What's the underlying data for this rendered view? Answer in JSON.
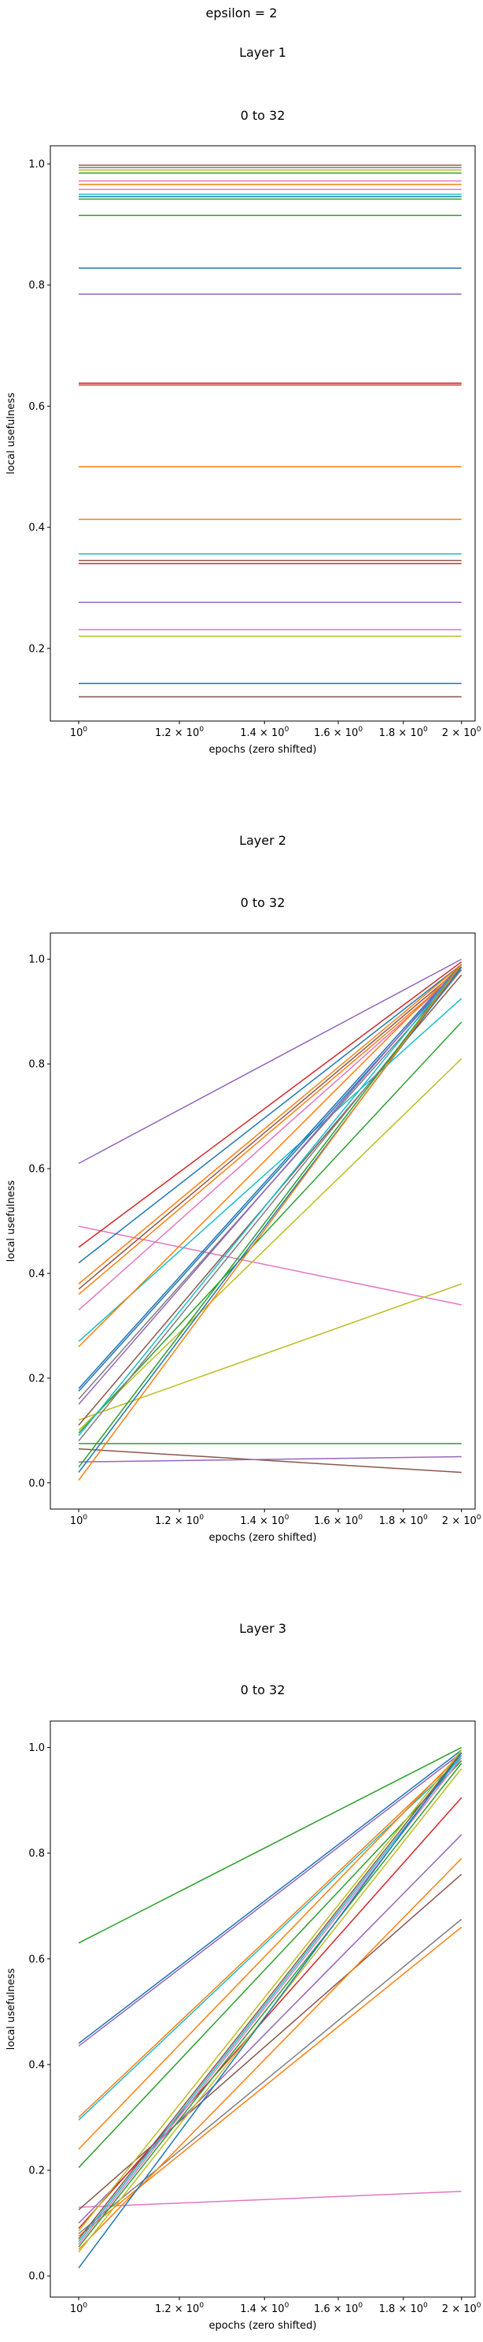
{
  "figure": {
    "suptitle": "epsilon = 2"
  },
  "chart_data": [
    {
      "type": "line",
      "section_title": "Layer 1",
      "title": "0 to 32",
      "xlabel": "epochs (zero shifted)",
      "ylabel": "local usefulness",
      "x_scale": "log",
      "x": [
        1,
        2
      ],
      "xlim": [
        0.95,
        2.05
      ],
      "ylim": [
        0.08,
        1.03
      ],
      "xticks": [
        1.0,
        1.2,
        1.4,
        1.6,
        1.8,
        2.0
      ],
      "xtick_labels": [
        {
          "base": "10",
          "exp": "0"
        },
        {
          "base": "1.2 × 10",
          "exp": "0"
        },
        {
          "base": "1.4 × 10",
          "exp": "0"
        },
        {
          "base": "1.6 × 10",
          "exp": "0"
        },
        {
          "base": "1.8 × 10",
          "exp": "0"
        },
        {
          "base": "2 × 10",
          "exp": "0"
        }
      ],
      "yticks": [
        "0.2",
        "0.4",
        "0.6",
        "0.8",
        "1.0"
      ],
      "grid": false,
      "series": [
        {
          "color": "#8c564b",
          "values": [
            0.998,
            0.998
          ]
        },
        {
          "color": "#7f7f7f",
          "values": [
            0.994,
            0.994
          ]
        },
        {
          "color": "#bcbd22",
          "values": [
            0.99,
            0.99
          ]
        },
        {
          "color": "#2ca02c",
          "values": [
            0.985,
            0.985
          ]
        },
        {
          "color": "#e377c2",
          "values": [
            0.972,
            0.972
          ]
        },
        {
          "color": "#ff7f0e",
          "values": [
            0.966,
            0.966
          ]
        },
        {
          "color": "#e377c2",
          "values": [
            0.958,
            0.958
          ]
        },
        {
          "color": "#17becf",
          "values": [
            0.95,
            0.95
          ]
        },
        {
          "color": "#1f77b4",
          "values": [
            0.946,
            0.946
          ]
        },
        {
          "color": "#2ca02c",
          "values": [
            0.942,
            0.942
          ]
        },
        {
          "color": "#2ca02c",
          "values": [
            0.915,
            0.915
          ]
        },
        {
          "color": "#1f77b4",
          "values": [
            0.828,
            0.828
          ]
        },
        {
          "color": "#9467bd",
          "values": [
            0.785,
            0.785
          ]
        },
        {
          "color": "#d62728",
          "values": [
            0.638,
            0.638
          ]
        },
        {
          "color": "#d62728",
          "values": [
            0.635,
            0.635
          ]
        },
        {
          "color": "#ff7f0e",
          "values": [
            0.5,
            0.5
          ]
        },
        {
          "color": "#ff7f0e",
          "values": [
            0.413,
            0.413
          ]
        },
        {
          "color": "#17becf",
          "values": [
            0.356,
            0.356
          ]
        },
        {
          "color": "#8c564b",
          "values": [
            0.345,
            0.345
          ]
        },
        {
          "color": "#d62728",
          "values": [
            0.34,
            0.34
          ]
        },
        {
          "color": "#9467bd",
          "values": [
            0.276,
            0.276
          ]
        },
        {
          "color": "#e377c2",
          "values": [
            0.231,
            0.231
          ]
        },
        {
          "color": "#bcbd22",
          "values": [
            0.22,
            0.22
          ]
        },
        {
          "color": "#1f77b4",
          "values": [
            0.142,
            0.142
          ]
        },
        {
          "color": "#8c564b",
          "values": [
            0.12,
            0.12
          ]
        }
      ]
    },
    {
      "type": "line",
      "section_title": "Layer 2",
      "title": "0 to 32",
      "xlabel": "epochs (zero shifted)",
      "ylabel": "local usefulness",
      "x_scale": "log",
      "x": [
        1,
        2
      ],
      "xlim": [
        0.95,
        2.05
      ],
      "ylim": [
        -0.05,
        1.05
      ],
      "xticks": [
        1.0,
        1.2,
        1.4,
        1.6,
        1.8,
        2.0
      ],
      "xtick_labels": [
        {
          "base": "10",
          "exp": "0"
        },
        {
          "base": "1.2 × 10",
          "exp": "0"
        },
        {
          "base": "1.4 × 10",
          "exp": "0"
        },
        {
          "base": "1.6 × 10",
          "exp": "0"
        },
        {
          "base": "1.8 × 10",
          "exp": "0"
        },
        {
          "base": "2 × 10",
          "exp": "0"
        }
      ],
      "yticks": [
        "0.0",
        "0.2",
        "0.4",
        "0.6",
        "0.8",
        "1.0"
      ],
      "grid": false,
      "series": [
        {
          "color": "#9467bd",
          "values": [
            0.61,
            1.0
          ]
        },
        {
          "color": "#e377c2",
          "values": [
            0.49,
            0.34
          ]
        },
        {
          "color": "#d62728",
          "values": [
            0.45,
            0.995
          ]
        },
        {
          "color": "#1f77b4",
          "values": [
            0.42,
            0.99
          ]
        },
        {
          "color": "#ff7f0e",
          "values": [
            0.38,
            0.99
          ]
        },
        {
          "color": "#8c564b",
          "values": [
            0.37,
            0.985
          ]
        },
        {
          "color": "#ff7f0e",
          "values": [
            0.36,
            0.98
          ]
        },
        {
          "color": "#e377c2",
          "values": [
            0.33,
            0.98
          ]
        },
        {
          "color": "#17becf",
          "values": [
            0.27,
            0.925
          ]
        },
        {
          "color": "#ff7f0e",
          "values": [
            0.26,
            0.99
          ]
        },
        {
          "color": "#1f77b4",
          "values": [
            0.18,
            0.99
          ]
        },
        {
          "color": "#1f77b4",
          "values": [
            0.175,
            0.985
          ]
        },
        {
          "color": "#7f7f7f",
          "values": [
            0.16,
            0.98
          ]
        },
        {
          "color": "#9467bd",
          "values": [
            0.15,
            0.99
          ]
        },
        {
          "color": "#bcbd22",
          "values": [
            0.12,
            0.38
          ]
        },
        {
          "color": "#8c564b",
          "values": [
            0.11,
            0.97
          ]
        },
        {
          "color": "#bcbd22",
          "values": [
            0.1,
            0.81
          ]
        },
        {
          "color": "#2ca02c",
          "values": [
            0.095,
            0.88
          ]
        },
        {
          "color": "#17becf",
          "values": [
            0.09,
            0.99
          ]
        },
        {
          "color": "#7f7f7f",
          "values": [
            0.08,
            0.98
          ]
        },
        {
          "color": "#2ca02c",
          "values": [
            0.075,
            0.075
          ]
        },
        {
          "color": "#8c564b",
          "values": [
            0.065,
            0.02
          ]
        },
        {
          "color": "#9467bd",
          "values": [
            0.04,
            0.05
          ]
        },
        {
          "color": "#2ca02c",
          "values": [
            0.03,
            0.99
          ]
        },
        {
          "color": "#1f77b4",
          "values": [
            0.02,
            0.985
          ]
        },
        {
          "color": "#ff7f0e",
          "values": [
            0.005,
            0.99
          ]
        }
      ]
    },
    {
      "type": "line",
      "section_title": "Layer 3",
      "title": "0 to 32",
      "xlabel": "epochs (zero shifted)",
      "ylabel": "local usefulness",
      "x_scale": "log",
      "x": [
        1,
        2
      ],
      "xlim": [
        0.95,
        2.05
      ],
      "ylim": [
        -0.04,
        1.05
      ],
      "xticks": [
        1.0,
        1.2,
        1.4,
        1.6,
        1.8,
        2.0
      ],
      "xtick_labels": [
        {
          "base": "10",
          "exp": "0"
        },
        {
          "base": "1.2 × 10",
          "exp": "0"
        },
        {
          "base": "1.4 × 10",
          "exp": "0"
        },
        {
          "base": "1.6 × 10",
          "exp": "0"
        },
        {
          "base": "1.8 × 10",
          "exp": "0"
        },
        {
          "base": "2 × 10",
          "exp": "0"
        }
      ],
      "yticks": [
        "0.0",
        "0.2",
        "0.4",
        "0.6",
        "0.8",
        "1.0"
      ],
      "grid": false,
      "series": [
        {
          "color": "#2ca02c",
          "values": [
            0.63,
            1.0
          ]
        },
        {
          "color": "#1f77b4",
          "values": [
            0.44,
            0.995
          ]
        },
        {
          "color": "#9467bd",
          "values": [
            0.435,
            0.99
          ]
        },
        {
          "color": "#ff7f0e",
          "values": [
            0.3,
            0.985
          ]
        },
        {
          "color": "#17becf",
          "values": [
            0.295,
            0.98
          ]
        },
        {
          "color": "#ff7f0e",
          "values": [
            0.24,
            0.99
          ]
        },
        {
          "color": "#2ca02c",
          "values": [
            0.205,
            0.975
          ]
        },
        {
          "color": "#e377c2",
          "values": [
            0.13,
            0.16
          ]
        },
        {
          "color": "#8c564b",
          "values": [
            0.125,
            0.76
          ]
        },
        {
          "color": "#9467bd",
          "values": [
            0.1,
            0.835
          ]
        },
        {
          "color": "#d62728",
          "values": [
            0.09,
            0.905
          ]
        },
        {
          "color": "#bcbd22",
          "values": [
            0.085,
            0.995
          ]
        },
        {
          "color": "#7f7f7f",
          "values": [
            0.08,
            0.675
          ]
        },
        {
          "color": "#ff7f0e",
          "values": [
            0.075,
            0.66
          ]
        },
        {
          "color": "#8c564b",
          "values": [
            0.07,
            0.99
          ]
        },
        {
          "color": "#17becf",
          "values": [
            0.065,
            0.985
          ]
        },
        {
          "color": "#e377c2",
          "values": [
            0.06,
            0.98
          ]
        },
        {
          "color": "#2ca02c",
          "values": [
            0.055,
            0.97
          ]
        },
        {
          "color": "#ff7f0e",
          "values": [
            0.05,
            0.79
          ]
        },
        {
          "color": "#bcbd22",
          "values": [
            0.045,
            0.96
          ]
        },
        {
          "color": "#1f77b4",
          "values": [
            0.015,
            0.99
          ]
        }
      ]
    }
  ]
}
